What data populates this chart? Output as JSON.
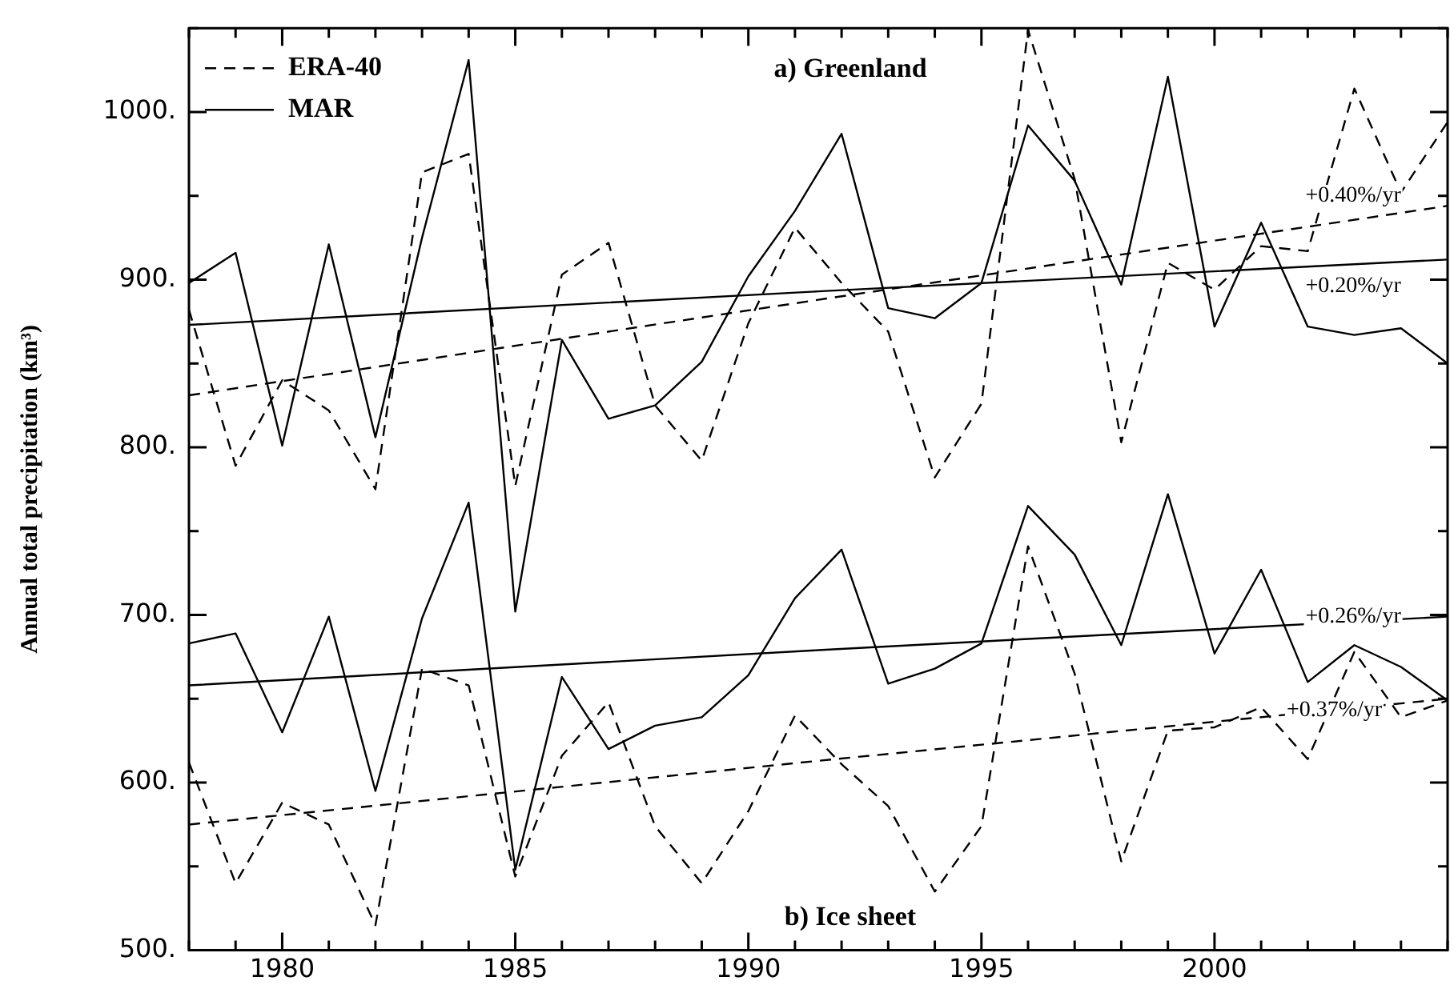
{
  "chart_data": {
    "type": "line",
    "ylabel": "Annual total precipitation (km³)",
    "x": [
      1978,
      1979,
      1980,
      1981,
      1982,
      1983,
      1984,
      1985,
      1986,
      1987,
      1988,
      1989,
      1990,
      1991,
      1992,
      1993,
      1994,
      1995,
      1996,
      1997,
      1998,
      1999,
      2000,
      2001,
      2002,
      2003,
      2004,
      2005
    ],
    "series": [
      {
        "name": "ERA-40",
        "color": "#000000",
        "line_style": "dashed",
        "values": [
          882,
          789,
          840,
          822,
          775,
          964,
          975,
          777,
          903,
          922,
          825,
          792,
          874,
          931,
          898,
          869,
          782,
          826,
          1049,
          960,
          803,
          910,
          894,
          920,
          917,
          1014,
          952,
          994
        ]
      },
      {
        "name": "MAR",
        "color": "#000000",
        "line_style": "solid",
        "values": [
          898,
          916,
          801,
          921,
          806,
          925,
          1031,
          702,
          864,
          817,
          825,
          851,
          902,
          941,
          987,
          883,
          877,
          898,
          992,
          959,
          897,
          1021,
          872,
          934,
          872,
          867,
          871,
          850
        ]
      },
      {
        "color": "#000000",
        "line_style": "dashed",
        "values": [
          612,
          540,
          588,
          575,
          515,
          668,
          658,
          544,
          616,
          648,
          574,
          540,
          583,
          640,
          611,
          586,
          535,
          574,
          741,
          665,
          553,
          631,
          633,
          645,
          614,
          678,
          639,
          649
        ]
      },
      {
        "color": "#000000",
        "line_style": "solid",
        "values": [
          683,
          689,
          630,
          699,
          595,
          698,
          767,
          548,
          663,
          620,
          634,
          639,
          664,
          710,
          739,
          659,
          668,
          683,
          765,
          736,
          682,
          772,
          677,
          727,
          660,
          682,
          669,
          649
        ]
      },
      {
        "type": "line",
        "color": "#000000",
        "line_style": "dashed",
        "x": [
          1978,
          1991.5,
          2005
        ],
        "values": [
          831,
          888,
          944
        ]
      },
      {
        "type": "line",
        "color": "#000000",
        "line_style": "solid",
        "x": [
          1978,
          1991.5,
          2005
        ],
        "values": [
          873,
          893,
          912
        ]
      },
      {
        "type": "line",
        "color": "#000000",
        "line_style": "solid",
        "x": [
          1978,
          1991.5,
          2005
        ],
        "values": [
          658,
          679,
          699
        ]
      },
      {
        "type": "line",
        "color": "#000000",
        "line_style": "dashed",
        "x": [
          1978,
          1991.5,
          2005
        ],
        "values": [
          575,
          613,
          650
        ]
      }
    ],
    "xlim": [
      1978,
      2005
    ],
    "xticks": [
      {
        "value": 1978,
        "label": null
      },
      {
        "value": 1979,
        "label": null
      },
      1980,
      {
        "value": 1981,
        "label": null
      },
      {
        "value": 1982,
        "label": null
      },
      {
        "value": 1983,
        "label": null
      },
      {
        "value": 1984,
        "label": null
      },
      1985,
      {
        "value": 1986,
        "label": null
      },
      {
        "value": 1987,
        "label": null
      },
      {
        "value": 1988,
        "label": null
      },
      {
        "value": 1989,
        "label": null
      },
      1990,
      {
        "value": 1991,
        "label": null
      },
      {
        "value": 1992,
        "label": null
      },
      {
        "value": 1993,
        "label": null
      },
      {
        "value": 1994,
        "label": null
      },
      1995,
      {
        "value": 1996,
        "label": null
      },
      {
        "value": 1997,
        "label": null
      },
      {
        "value": 1998,
        "label": null
      },
      {
        "value": 1999,
        "label": null
      },
      2000,
      {
        "value": 2001,
        "label": null
      },
      {
        "value": 2002,
        "label": null
      },
      {
        "value": 2003,
        "label": null
      },
      {
        "value": 2004,
        "label": null
      },
      {
        "value": 2005,
        "label": null
      }
    ],
    "ylim": [
      500,
      1050
    ],
    "yticks": [
      {
        "value": 500,
        "label": "500."
      },
      {
        "value": 550,
        "label": null
      },
      {
        "value": 600,
        "label": "600."
      },
      {
        "value": 650,
        "label": null
      },
      {
        "value": 700,
        "label": "700."
      },
      {
        "value": 750,
        "label": null
      },
      {
        "value": 800,
        "label": "800."
      },
      {
        "value": 850,
        "label": null
      },
      {
        "value": 900,
        "label": "900."
      },
      {
        "value": 950,
        "label": null
      },
      {
        "value": 1000,
        "label": "1000."
      },
      {
        "value": 1050,
        "label": null
      }
    ],
    "annotations": [
      "a) Greenland",
      "b) Ice sheet",
      "+0.40%/yr",
      "+0.20%/yr",
      "+0.26%/yr",
      "+0.37%/yr"
    ],
    "legend": "top left",
    "grid": false,
    "marker": "none"
  }
}
